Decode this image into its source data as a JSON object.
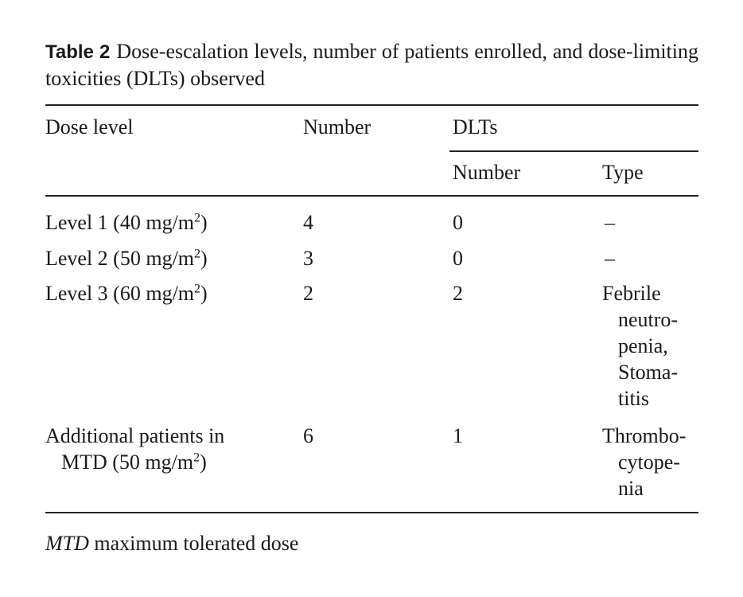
{
  "caption": {
    "label": "Table 2",
    "text": "Dose-escalation levels, number of patients enrolled, and dose-limiting toxicities (DLTs) observed"
  },
  "headers": {
    "dose_level": "Dose level",
    "number": "Number",
    "dlts": "DLTs",
    "dlt_number": "Number",
    "dlt_type": "Type"
  },
  "rows": [
    {
      "dose": "Level 1 (40 mg/m",
      "sup": "2",
      ")": ")",
      "number": "4",
      "dlt_number": "0",
      "type": [
        "–"
      ]
    },
    {
      "dose": "Level 2 (50 mg/m",
      "sup": "2",
      "number": "3",
      "dlt_number": "0",
      "type": [
        "–"
      ]
    },
    {
      "dose": "Level 3 (60 mg/m",
      "sup": "2",
      "number": "2",
      "dlt_number": "2",
      "type": [
        "Febrile",
        "neutro-",
        "penia,",
        "Stoma-",
        "titis"
      ]
    },
    {
      "dose": "Additional patients in",
      "dose2": "MTD (50 mg/m",
      "sup": "2",
      "number": "6",
      "dlt_number": "1",
      "type": [
        "Thrombo-",
        "cytope-",
        "nia"
      ]
    }
  ],
  "footnote": {
    "abbr": "MTD",
    "text": " maximum tolerated dose"
  }
}
